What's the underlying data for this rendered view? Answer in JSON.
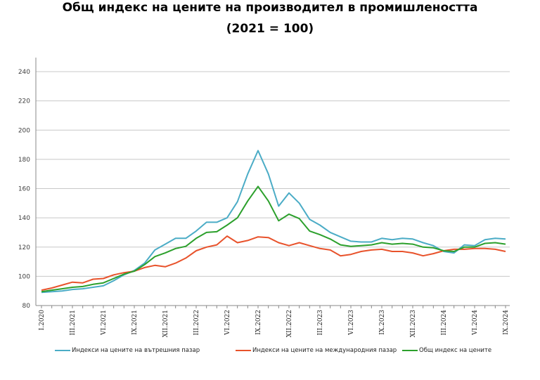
{
  "chart_data": {
    "type": "line",
    "title": "Общ индекс на цените на производител в промишлеността",
    "subtitle": "(2021 = 100)",
    "xlabel": "",
    "ylabel": "",
    "ylim": [
      80,
      240
    ],
    "yticks": [
      80,
      100,
      120,
      140,
      160,
      180,
      200,
      220,
      240
    ],
    "grid": true,
    "legend_position": "bottom",
    "x_tick_labels": [
      "I.2020",
      "III.2021",
      "VI.2021",
      "IX.2021",
      "XII.2021",
      "III.2022",
      "VI.2022",
      "IX.2022",
      "XII.2022",
      "III.2023",
      "VI.2023",
      "IX.2023",
      "XII.2023",
      "III.2024",
      "VI.2024",
      "IX.2024"
    ],
    "series": [
      {
        "name": "Индекси на цените на вътрешния пазар",
        "color": "#4bacc6",
        "values": [
          89,
          89.5,
          90,
          91,
          91.5,
          92.5,
          93.5,
          97,
          101,
          104,
          109,
          118,
          122,
          126,
          126,
          131,
          137,
          137,
          140,
          151,
          170,
          186,
          170,
          148,
          157,
          150,
          139,
          135,
          130,
          127,
          124,
          123.5,
          123.5,
          126,
          125,
          126,
          125.5,
          123,
          121,
          117,
          116,
          121.5,
          121,
          125,
          126,
          125.5
        ]
      },
      {
        "name": "Индекси на цените на международния пазар",
        "color": "#e8522b",
        "values": [
          90.5,
          92,
          94,
          96,
          95.5,
          98,
          98.5,
          101,
          102.5,
          103.5,
          106,
          107.5,
          106.5,
          109,
          112.5,
          117.5,
          120,
          121.5,
          127.5,
          123,
          124.5,
          127,
          126.5,
          123,
          121,
          123,
          121,
          119,
          118,
          114,
          115,
          117,
          118,
          118.5,
          117,
          117,
          116,
          114,
          115.5,
          117.5,
          118.5,
          118.5,
          119,
          119,
          118.5,
          117
        ]
      },
      {
        "name": "Общ индекс на цените",
        "color": "#2ca02c",
        "values": [
          89.5,
          90.5,
          91.5,
          92.5,
          93,
          94.5,
          95.5,
          98.5,
          101.5,
          103.5,
          108,
          113.5,
          116,
          119,
          120.5,
          126,
          130,
          130.5,
          135,
          140,
          151.5,
          161.5,
          151.5,
          138,
          142.5,
          139.5,
          131,
          128.5,
          125.5,
          121.5,
          120.5,
          121,
          121.5,
          123,
          122,
          122.5,
          122,
          120,
          119.5,
          117.5,
          117,
          120,
          120,
          122.5,
          123,
          122
        ]
      }
    ]
  }
}
